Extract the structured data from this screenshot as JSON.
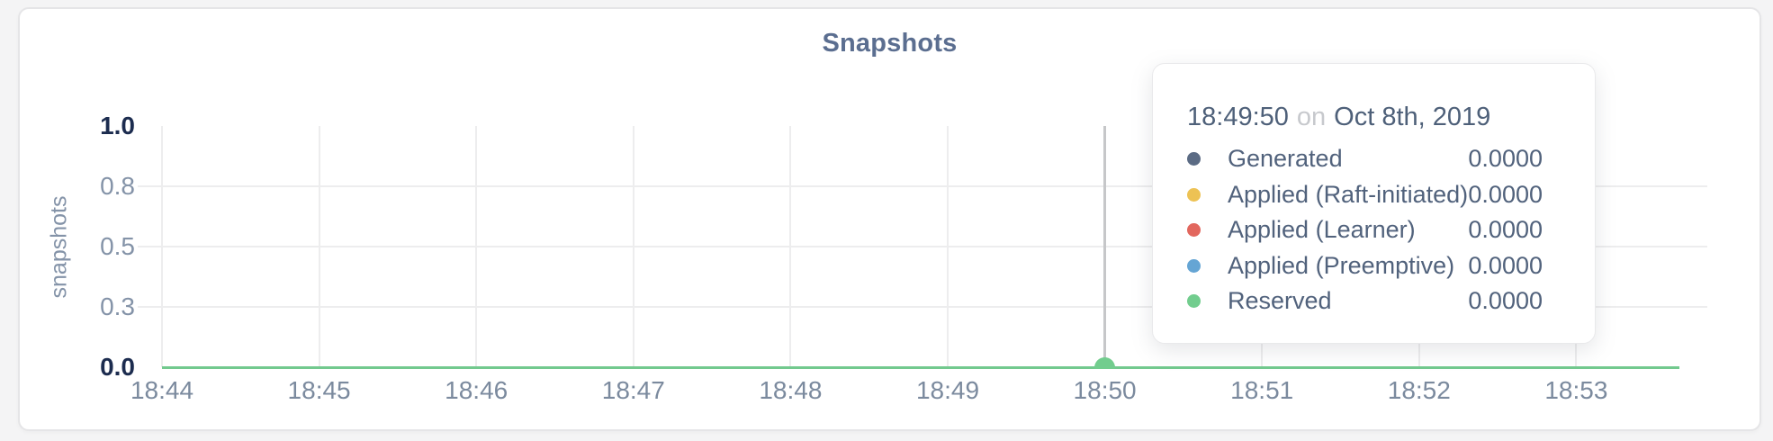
{
  "page": {
    "background": "#f4f4f5",
    "card_background": "#ffffff"
  },
  "card": {
    "title": "Snapshots"
  },
  "chart_data": {
    "type": "line",
    "title": "Snapshots",
    "xlabel": "",
    "ylabel": "snapshots",
    "ylim": [
      0,
      1
    ],
    "grid": true,
    "x_ticks": [
      "18:44",
      "18:45",
      "18:46",
      "18:47",
      "18:48",
      "18:49",
      "18:50",
      "18:51",
      "18:52",
      "18:53"
    ],
    "y_ticks": [
      {
        "label": "0.0",
        "value": 0,
        "strong": true
      },
      {
        "label": "0.3",
        "value": 0.25,
        "strong": false
      },
      {
        "label": "0.5",
        "value": 0.5,
        "strong": false
      },
      {
        "label": "0.8",
        "value": 0.75,
        "strong": false
      },
      {
        "label": "1.0",
        "value": 1,
        "strong": true
      }
    ],
    "series": [
      {
        "name": "Generated",
        "color": "#5b6b84",
        "values": [
          0,
          0,
          0,
          0,
          0,
          0,
          0,
          0,
          0,
          0
        ]
      },
      {
        "name": "Applied (Raft-initiated)",
        "color": "#edc254",
        "values": [
          0,
          0,
          0,
          0,
          0,
          0,
          0,
          0,
          0,
          0
        ]
      },
      {
        "name": "Applied (Learner)",
        "color": "#e2675e",
        "values": [
          0,
          0,
          0,
          0,
          0,
          0,
          0,
          0,
          0,
          0
        ]
      },
      {
        "name": "Applied (Preemptive)",
        "color": "#65a5d4",
        "values": [
          0,
          0,
          0,
          0,
          0,
          0,
          0,
          0,
          0,
          0
        ]
      },
      {
        "name": "Reserved",
        "color": "#72c98e",
        "values": [
          0,
          0,
          0,
          0,
          0,
          0,
          0,
          0,
          0,
          0
        ]
      }
    ],
    "visible_line_color": "#72c98e",
    "hover": {
      "x_tick_index": 6,
      "x_label": "18:50",
      "time": "18:49:50",
      "value": 0,
      "line_color": "#c6c7c9",
      "dot_color": "#72cd8e"
    },
    "legend_position": "tooltip"
  },
  "tooltip": {
    "time": "18:49:50",
    "conj": "on",
    "date": "Oct 8th, 2019",
    "rows": [
      {
        "label": "Generated",
        "value": "0.0000",
        "color": "#5b6b84"
      },
      {
        "label": "Applied (Raft-initiated)",
        "value": "0.0000",
        "color": "#edc254"
      },
      {
        "label": "Applied (Learner)",
        "value": "0.0000",
        "color": "#e2675e"
      },
      {
        "label": "Applied (Preemptive)",
        "value": "0.0000",
        "color": "#65a5d4"
      },
      {
        "label": "Reserved",
        "value": "0.0000",
        "color": "#72cd8e"
      }
    ]
  }
}
